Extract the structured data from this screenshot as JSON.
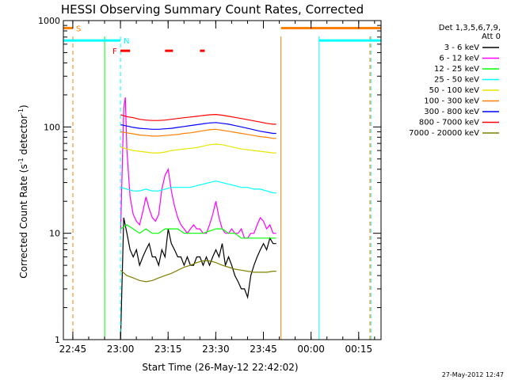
{
  "chart_data": {
    "type": "line",
    "title": "HESSI Observing Summary Count Rates, Corrected",
    "xlabel": "Start Time (26-May-12 22:42:02)",
    "ylabel": "Corrected Count Rate (s⁻¹ detector⁻¹)",
    "ylabel_main": "Corrected Count Rate (s",
    "ylabel_sup1": "-1",
    "ylabel_mid": " detector",
    "ylabel_sup2": "-1",
    "ylabel_end": ")",
    "x_unit": "minutes since 22:42:02",
    "x_range": [
      0,
      100
    ],
    "y_scale": "log",
    "ylim": [
      1,
      1000
    ],
    "y_ticks": [
      {
        "value": 1,
        "label": "1"
      },
      {
        "value": 10,
        "label": "10"
      },
      {
        "value": 100,
        "label": "100"
      },
      {
        "value": 1000,
        "label": "1000"
      }
    ],
    "x_ticks": [
      {
        "value": 2.97,
        "label": "22:45"
      },
      {
        "value": 17.97,
        "label": "23:00"
      },
      {
        "value": 32.97,
        "label": "23:15"
      },
      {
        "value": 47.97,
        "label": "23:30"
      },
      {
        "value": 62.97,
        "label": "23:45"
      },
      {
        "value": 77.97,
        "label": "00:00"
      },
      {
        "value": 92.97,
        "label": "00:15"
      }
    ],
    "legend_header": [
      "Det 1,3,5,6,7,9,",
      "Att 0"
    ],
    "legend_position": "right",
    "legend": [
      {
        "label": "3 - 6 keV",
        "color": "#000000"
      },
      {
        "label": "6 - 12 keV",
        "color": "#ff00ff"
      },
      {
        "label": "12 - 25 keV",
        "color": "#00ff00"
      },
      {
        "label": "25 - 50 keV",
        "color": "#00ffff"
      },
      {
        "label": "50 - 100 keV",
        "color": "#e6e600"
      },
      {
        "label": "100 - 300 keV",
        "color": "#ff8000"
      },
      {
        "label": "300 - 800 keV",
        "color": "#0000ff"
      },
      {
        "label": "800 - 7000 keV",
        "color": "#ff0000"
      },
      {
        "label": "7000 - 20000 keV",
        "color": "#808000"
      }
    ],
    "series": [
      {
        "name": "3 - 6 keV",
        "color": "#000000",
        "x": [
          18.0,
          19,
          20,
          21,
          22,
          23,
          24,
          25,
          26,
          27,
          28,
          29,
          30,
          31,
          32,
          33,
          34,
          35,
          36,
          37,
          38,
          39,
          40,
          41,
          42,
          43,
          44,
          45,
          46,
          47,
          48,
          49,
          50,
          51,
          52,
          53,
          54,
          55,
          56,
          57,
          58,
          59,
          60,
          61,
          62,
          63,
          64,
          65,
          66,
          67
        ],
        "y": [
          1.0,
          14,
          10,
          7,
          6,
          7,
          5,
          6,
          7,
          8,
          6,
          6,
          5,
          7,
          6,
          11,
          8,
          7,
          6,
          6,
          5,
          6,
          5,
          5,
          6,
          6,
          5,
          6,
          5,
          6,
          7,
          6,
          8,
          5,
          6,
          5,
          4,
          3.5,
          3,
          3,
          2.5,
          4,
          5,
          6,
          7,
          8,
          7,
          9,
          8,
          8
        ]
      },
      {
        "name": "6 - 12 keV",
        "color": "#ff00ff",
        "x": [
          18.0,
          19,
          19.5,
          20,
          21,
          22,
          23,
          24,
          25,
          26,
          27,
          28,
          29,
          30,
          31,
          32,
          33,
          34,
          35,
          36,
          37,
          38,
          39,
          40,
          41,
          42,
          43,
          44,
          45,
          46,
          47,
          48,
          49,
          50,
          51,
          52,
          53,
          54,
          55,
          56,
          57,
          58,
          59,
          60,
          61,
          62,
          63,
          64,
          65,
          66,
          67
        ],
        "y": [
          10,
          150,
          190,
          60,
          22,
          15,
          13,
          12,
          16,
          22,
          17,
          14,
          13,
          15,
          26,
          35,
          40,
          25,
          18,
          14,
          12,
          11,
          10,
          11,
          12,
          11,
          11,
          10,
          10,
          12,
          15,
          20,
          14,
          11,
          10,
          10,
          11,
          10,
          10,
          11,
          9,
          9,
          10,
          10,
          12,
          14,
          13,
          11,
          12,
          10,
          10
        ]
      },
      {
        "name": "12 - 25 keV",
        "color": "#00ff00",
        "x": [
          18.0,
          20,
          22,
          24,
          26,
          28,
          30,
          32,
          34,
          36,
          38,
          40,
          42,
          44,
          46,
          48,
          50,
          52,
          54,
          56,
          58,
          60,
          62,
          64,
          66,
          67
        ],
        "y": [
          11,
          12,
          11,
          10,
          11,
          10,
          10,
          11,
          11,
          11,
          10,
          10,
          10,
          10,
          10.5,
          11,
          11,
          10,
          10,
          9,
          9,
          9,
          9,
          9,
          9,
          9
        ]
      },
      {
        "name": "25 - 50 keV",
        "color": "#00ffff",
        "x": [
          18.0,
          20,
          22,
          24,
          26,
          28,
          30,
          32,
          34,
          36,
          38,
          40,
          42,
          44,
          46,
          48,
          50,
          52,
          54,
          56,
          58,
          60,
          62,
          64,
          66,
          67
        ],
        "y": [
          27,
          26,
          25,
          25,
          26,
          25,
          25,
          26,
          27,
          27,
          27,
          27,
          28,
          29,
          30,
          31,
          30,
          29,
          28,
          27,
          27,
          26,
          26,
          25,
          24,
          24
        ]
      },
      {
        "name": "50 - 100 keV",
        "color": "#e6e600",
        "x": [
          18.0,
          20,
          22,
          24,
          26,
          28,
          30,
          32,
          34,
          36,
          38,
          40,
          42,
          44,
          46,
          48,
          50,
          52,
          54,
          56,
          58,
          60,
          62,
          64,
          66,
          67
        ],
        "y": [
          65,
          62,
          60,
          59,
          58,
          57,
          57,
          58,
          60,
          61,
          62,
          63,
          64,
          66,
          68,
          69,
          68,
          66,
          64,
          62,
          61,
          60,
          59,
          58,
          57,
          57
        ]
      },
      {
        "name": "100 - 300 keV",
        "color": "#ff8000",
        "x": [
          18.0,
          20,
          22,
          24,
          26,
          28,
          30,
          32,
          34,
          36,
          38,
          40,
          42,
          44,
          46,
          48,
          50,
          52,
          54,
          56,
          58,
          60,
          62,
          64,
          66,
          67
        ],
        "y": [
          90,
          88,
          86,
          84,
          83,
          82,
          82,
          83,
          84,
          85,
          87,
          88,
          90,
          92,
          94,
          95,
          93,
          91,
          89,
          87,
          85,
          83,
          81,
          80,
          78,
          78
        ]
      },
      {
        "name": "300 - 800 keV",
        "color": "#0000ff",
        "x": [
          18.0,
          20,
          22,
          24,
          26,
          28,
          30,
          32,
          34,
          36,
          38,
          40,
          42,
          44,
          46,
          48,
          50,
          52,
          54,
          56,
          58,
          60,
          62,
          64,
          66,
          67
        ],
        "y": [
          105,
          102,
          99,
          97,
          96,
          95,
          95,
          96,
          97,
          99,
          101,
          103,
          105,
          107,
          109,
          110,
          108,
          106,
          103,
          100,
          97,
          94,
          91,
          89,
          87,
          87
        ]
      },
      {
        "name": "800 - 7000 keV",
        "color": "#ff0000",
        "x": [
          18.0,
          20,
          22,
          24,
          26,
          28,
          30,
          32,
          34,
          36,
          38,
          40,
          42,
          44,
          46,
          48,
          50,
          52,
          54,
          56,
          58,
          60,
          62,
          64,
          66,
          67
        ],
        "y": [
          130,
          125,
          122,
          118,
          116,
          115,
          115,
          116,
          118,
          120,
          122,
          124,
          126,
          128,
          130,
          131,
          129,
          126,
          123,
          120,
          117,
          114,
          111,
          108,
          106,
          106
        ]
      },
      {
        "name": "7000 - 20000 keV",
        "color": "#808000",
        "x": [
          18.0,
          20,
          22,
          24,
          26,
          28,
          30,
          32,
          34,
          36,
          38,
          40,
          42,
          44,
          46,
          48,
          50,
          52,
          54,
          56,
          58,
          60,
          62,
          64,
          66,
          67
        ],
        "y": [
          4.5,
          4.0,
          3.8,
          3.6,
          3.5,
          3.6,
          3.8,
          4.0,
          4.2,
          4.5,
          4.8,
          5.0,
          5.3,
          5.5,
          5.5,
          5.3,
          5.0,
          4.8,
          4.6,
          4.5,
          4.4,
          4.3,
          4.3,
          4.3,
          4.4,
          4.4
        ]
      }
    ],
    "flag_bars": [
      {
        "label": "S",
        "color": "#ff8000",
        "y_level": 850,
        "segments": [
          [
            0,
            3.0
          ],
          [
            68.5,
            100
          ]
        ]
      },
      {
        "label": "N",
        "color": "#00ffff",
        "y_level": 650,
        "segments": [
          [
            0,
            17.97
          ],
          [
            80.5,
            100
          ]
        ]
      },
      {
        "label": "F",
        "color": "#ff0000",
        "y_level": 520,
        "segments": [
          [
            17.97,
            21.0
          ],
          [
            32.0,
            34.5
          ],
          [
            43.0,
            44.5
          ]
        ]
      }
    ],
    "vertical_markers": [
      {
        "color": "#ff8000",
        "style": "dashed",
        "x": 3.0
      },
      {
        "color": "#00ff00",
        "style": "solid",
        "x": 13.0
      },
      {
        "color": "#00ffff",
        "style": "dashed",
        "x": 17.97
      },
      {
        "color": "#ff8000",
        "style": "solid",
        "x": 68.5
      },
      {
        "color": "#00ffff",
        "style": "solid",
        "x": 80.5
      },
      {
        "color": "#ff8000",
        "style": "dashed",
        "x": 96.5
      },
      {
        "color": "#00ffff",
        "style": "dashed",
        "x": 96.8
      }
    ]
  },
  "footer": {
    "timestamp": "27-May-2012 12:47"
  }
}
